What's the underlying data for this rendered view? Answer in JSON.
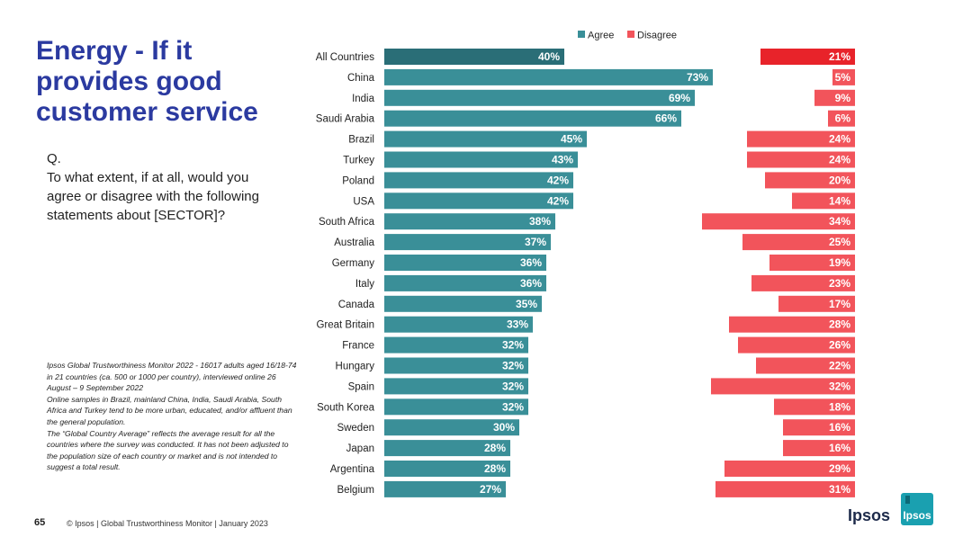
{
  "page": {
    "title": "Energy - If it provides good customer service",
    "question_prefix": "Q.",
    "question_text": "To what extent, if at all, would you agree or disagree with the following statements about [SECTOR]?",
    "footnote": [
      "Ipsos Global Trustworthiness Monitor 2022 - 16017 adults aged 16/18-74 in 21 countries (ca. 500 or 1000 per country), interviewed online 26 August – 9 September 2022",
      "Online samples in Brazil, mainland China, India, Saudi Arabia, South Africa and Turkey tend to be more urban, educated, and/or affluent than the general population.",
      "The “Global Country Average” reflects the average result for all the countries where the survey was conducted. It has not been adjusted to the population size of each country or market and is not intended to suggest a total result."
    ],
    "page_number": "65",
    "copyright": "© Ipsos | Global Trustworthiness Monitor | January 2023",
    "brand_word": "Ipsos",
    "logo_text": "Ipsos"
  },
  "colors": {
    "agree": "#3a8f98",
    "agree_highlight": "#2a6e77",
    "disagree": "#f2545b",
    "disagree_highlight": "#e8232a",
    "logo_bg": "#1aa0b0"
  },
  "chart_data": {
    "type": "bar",
    "title": "Energy - If it provides good customer service",
    "categories": [
      "All Countries",
      "China",
      "India",
      "Saudi Arabia",
      "Brazil",
      "Turkey",
      "Poland",
      "USA",
      "South Africa",
      "Australia",
      "Germany",
      "Italy",
      "Canada",
      "Great Britain",
      "France",
      "Hungary",
      "Spain",
      "South Korea",
      "Sweden",
      "Japan",
      "Argentina",
      "Belgium"
    ],
    "series": [
      {
        "name": "Agree",
        "values": [
          40,
          73,
          69,
          66,
          45,
          43,
          42,
          42,
          38,
          37,
          36,
          36,
          35,
          33,
          32,
          32,
          32,
          32,
          30,
          28,
          28,
          27
        ]
      },
      {
        "name": "Disagree",
        "values": [
          21,
          5,
          9,
          6,
          24,
          24,
          20,
          14,
          34,
          25,
          19,
          23,
          17,
          28,
          26,
          22,
          32,
          18,
          16,
          16,
          29,
          31
        ]
      }
    ],
    "highlight_category": "All Countries",
    "value_suffix": "%",
    "legend": [
      "Agree",
      "Disagree"
    ],
    "legend_position": "top",
    "xlim": [
      0,
      100
    ]
  }
}
